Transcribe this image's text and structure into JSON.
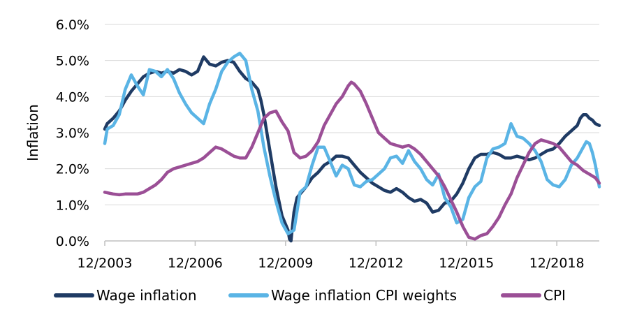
{
  "chart_data": {
    "type": "line",
    "title": "",
    "xlabel": "",
    "ylabel": "Inflation",
    "ylim": [
      0,
      6
    ],
    "y_ticks": [
      "0.0%",
      "1.0%",
      "2.0%",
      "3.0%",
      "4.0%",
      "5.0%",
      "6.0%"
    ],
    "x_ticks": [
      "12/2003",
      "12/2006",
      "12/2009",
      "12/2012",
      "12/2015",
      "12/2018"
    ],
    "x_tick_values": [
      2003.92,
      2006.92,
      2009.92,
      2012.92,
      2015.92,
      2018.92
    ],
    "xlim": [
      2003.92,
      2020.33
    ],
    "grid": "horizontal",
    "legend_position": "bottom",
    "series": [
      {
        "name": "Wage inflation",
        "color": "#1f3b64",
        "points": [
          [
            2003.92,
            3.1
          ],
          [
            2004.0,
            3.25
          ],
          [
            2004.2,
            3.4
          ],
          [
            2004.4,
            3.6
          ],
          [
            2004.6,
            3.9
          ],
          [
            2004.8,
            4.15
          ],
          [
            2005.0,
            4.35
          ],
          [
            2005.2,
            4.55
          ],
          [
            2005.4,
            4.65
          ],
          [
            2005.6,
            4.7
          ],
          [
            2005.8,
            4.65
          ],
          [
            2006.0,
            4.7
          ],
          [
            2006.2,
            4.65
          ],
          [
            2006.4,
            4.75
          ],
          [
            2006.6,
            4.7
          ],
          [
            2006.8,
            4.6
          ],
          [
            2007.0,
            4.7
          ],
          [
            2007.2,
            5.1
          ],
          [
            2007.4,
            4.9
          ],
          [
            2007.6,
            4.85
          ],
          [
            2007.8,
            4.95
          ],
          [
            2008.0,
            5.0
          ],
          [
            2008.2,
            4.95
          ],
          [
            2008.4,
            4.7
          ],
          [
            2008.6,
            4.5
          ],
          [
            2008.8,
            4.4
          ],
          [
            2009.0,
            4.2
          ],
          [
            2009.1,
            3.9
          ],
          [
            2009.2,
            3.5
          ],
          [
            2009.3,
            3.0
          ],
          [
            2009.4,
            2.5
          ],
          [
            2009.5,
            2.0
          ],
          [
            2009.6,
            1.5
          ],
          [
            2009.7,
            1.1
          ],
          [
            2009.8,
            0.7
          ],
          [
            2009.9,
            0.5
          ],
          [
            2010.0,
            0.3
          ],
          [
            2010.05,
            0.05
          ],
          [
            2010.1,
            0.0
          ],
          [
            2010.2,
            0.8
          ],
          [
            2010.3,
            1.2
          ],
          [
            2010.4,
            1.3
          ],
          [
            2010.6,
            1.5
          ],
          [
            2010.8,
            1.75
          ],
          [
            2011.0,
            1.9
          ],
          [
            2011.2,
            2.1
          ],
          [
            2011.4,
            2.2
          ],
          [
            2011.6,
            2.35
          ],
          [
            2011.8,
            2.35
          ],
          [
            2012.0,
            2.3
          ],
          [
            2012.2,
            2.1
          ],
          [
            2012.4,
            1.9
          ],
          [
            2012.6,
            1.75
          ],
          [
            2012.8,
            1.6
          ],
          [
            2013.0,
            1.5
          ],
          [
            2013.2,
            1.4
          ],
          [
            2013.4,
            1.35
          ],
          [
            2013.6,
            1.45
          ],
          [
            2013.8,
            1.35
          ],
          [
            2014.0,
            1.2
          ],
          [
            2014.2,
            1.1
          ],
          [
            2014.4,
            1.15
          ],
          [
            2014.6,
            1.05
          ],
          [
            2014.8,
            0.8
          ],
          [
            2015.0,
            0.85
          ],
          [
            2015.2,
            1.05
          ],
          [
            2015.4,
            1.1
          ],
          [
            2015.6,
            1.3
          ],
          [
            2015.8,
            1.6
          ],
          [
            2016.0,
            2.0
          ],
          [
            2016.2,
            2.3
          ],
          [
            2016.4,
            2.4
          ],
          [
            2016.6,
            2.4
          ],
          [
            2016.8,
            2.45
          ],
          [
            2017.0,
            2.4
          ],
          [
            2017.2,
            2.3
          ],
          [
            2017.4,
            2.3
          ],
          [
            2017.6,
            2.35
          ],
          [
            2017.8,
            2.3
          ],
          [
            2018.0,
            2.25
          ],
          [
            2018.2,
            2.3
          ],
          [
            2018.4,
            2.4
          ],
          [
            2018.6,
            2.5
          ],
          [
            2018.8,
            2.55
          ],
          [
            2019.0,
            2.7
          ],
          [
            2019.2,
            2.9
          ],
          [
            2019.4,
            3.05
          ],
          [
            2019.6,
            3.2
          ],
          [
            2019.7,
            3.4
          ],
          [
            2019.8,
            3.5
          ],
          [
            2019.9,
            3.5
          ],
          [
            2020.0,
            3.4
          ],
          [
            2020.1,
            3.35
          ],
          [
            2020.2,
            3.25
          ],
          [
            2020.33,
            3.2
          ]
        ]
      },
      {
        "name": "Wage inflation CPI weights",
        "color": "#5ab4e5",
        "points": [
          [
            2003.92,
            2.7
          ],
          [
            2004.0,
            3.1
          ],
          [
            2004.2,
            3.2
          ],
          [
            2004.4,
            3.5
          ],
          [
            2004.6,
            4.2
          ],
          [
            2004.8,
            4.6
          ],
          [
            2005.0,
            4.3
          ],
          [
            2005.2,
            4.05
          ],
          [
            2005.4,
            4.75
          ],
          [
            2005.6,
            4.7
          ],
          [
            2005.8,
            4.55
          ],
          [
            2006.0,
            4.75
          ],
          [
            2006.2,
            4.5
          ],
          [
            2006.4,
            4.1
          ],
          [
            2006.6,
            3.8
          ],
          [
            2006.8,
            3.55
          ],
          [
            2007.0,
            3.4
          ],
          [
            2007.2,
            3.25
          ],
          [
            2007.4,
            3.8
          ],
          [
            2007.6,
            4.2
          ],
          [
            2007.8,
            4.7
          ],
          [
            2008.0,
            4.95
          ],
          [
            2008.2,
            5.1
          ],
          [
            2008.4,
            5.2
          ],
          [
            2008.6,
            5.0
          ],
          [
            2008.8,
            4.2
          ],
          [
            2009.0,
            3.6
          ],
          [
            2009.2,
            2.6
          ],
          [
            2009.4,
            1.8
          ],
          [
            2009.6,
            1.1
          ],
          [
            2009.8,
            0.5
          ],
          [
            2010.0,
            0.2
          ],
          [
            2010.1,
            0.25
          ],
          [
            2010.2,
            0.3
          ],
          [
            2010.4,
            1.35
          ],
          [
            2010.6,
            1.5
          ],
          [
            2010.8,
            2.1
          ],
          [
            2011.0,
            2.6
          ],
          [
            2011.2,
            2.6
          ],
          [
            2011.4,
            2.2
          ],
          [
            2011.6,
            1.8
          ],
          [
            2011.8,
            2.1
          ],
          [
            2012.0,
            2.0
          ],
          [
            2012.2,
            1.55
          ],
          [
            2012.4,
            1.5
          ],
          [
            2012.6,
            1.65
          ],
          [
            2012.8,
            1.7
          ],
          [
            2013.0,
            1.85
          ],
          [
            2013.2,
            2.0
          ],
          [
            2013.4,
            2.3
          ],
          [
            2013.6,
            2.35
          ],
          [
            2013.8,
            2.15
          ],
          [
            2014.0,
            2.5
          ],
          [
            2014.2,
            2.2
          ],
          [
            2014.4,
            2.0
          ],
          [
            2014.6,
            1.7
          ],
          [
            2014.8,
            1.55
          ],
          [
            2015.0,
            1.85
          ],
          [
            2015.2,
            1.2
          ],
          [
            2015.4,
            0.95
          ],
          [
            2015.6,
            0.5
          ],
          [
            2015.8,
            0.6
          ],
          [
            2016.0,
            1.2
          ],
          [
            2016.2,
            1.5
          ],
          [
            2016.4,
            1.65
          ],
          [
            2016.6,
            2.3
          ],
          [
            2016.8,
            2.55
          ],
          [
            2017.0,
            2.6
          ],
          [
            2017.2,
            2.7
          ],
          [
            2017.4,
            3.25
          ],
          [
            2017.6,
            2.9
          ],
          [
            2017.8,
            2.85
          ],
          [
            2018.0,
            2.7
          ],
          [
            2018.2,
            2.5
          ],
          [
            2018.4,
            2.2
          ],
          [
            2018.6,
            1.7
          ],
          [
            2018.8,
            1.55
          ],
          [
            2019.0,
            1.5
          ],
          [
            2019.2,
            1.7
          ],
          [
            2019.4,
            2.1
          ],
          [
            2019.6,
            2.3
          ],
          [
            2019.8,
            2.6
          ],
          [
            2019.9,
            2.75
          ],
          [
            2020.0,
            2.7
          ],
          [
            2020.1,
            2.45
          ],
          [
            2020.2,
            2.1
          ],
          [
            2020.33,
            1.5
          ]
        ]
      },
      {
        "name": "CPI",
        "color": "#9b4f96",
        "points": [
          [
            2003.92,
            1.35
          ],
          [
            2004.2,
            1.3
          ],
          [
            2004.4,
            1.28
          ],
          [
            2004.6,
            1.3
          ],
          [
            2004.8,
            1.3
          ],
          [
            2005.0,
            1.3
          ],
          [
            2005.2,
            1.35
          ],
          [
            2005.4,
            1.45
          ],
          [
            2005.6,
            1.55
          ],
          [
            2005.8,
            1.7
          ],
          [
            2006.0,
            1.9
          ],
          [
            2006.2,
            2.0
          ],
          [
            2006.4,
            2.05
          ],
          [
            2006.6,
            2.1
          ],
          [
            2006.8,
            2.15
          ],
          [
            2007.0,
            2.2
          ],
          [
            2007.2,
            2.3
          ],
          [
            2007.4,
            2.45
          ],
          [
            2007.6,
            2.6
          ],
          [
            2007.8,
            2.55
          ],
          [
            2008.0,
            2.45
          ],
          [
            2008.2,
            2.35
          ],
          [
            2008.4,
            2.3
          ],
          [
            2008.6,
            2.3
          ],
          [
            2008.8,
            2.6
          ],
          [
            2009.0,
            3.0
          ],
          [
            2009.2,
            3.4
          ],
          [
            2009.4,
            3.55
          ],
          [
            2009.6,
            3.6
          ],
          [
            2009.8,
            3.3
          ],
          [
            2010.0,
            3.05
          ],
          [
            2010.2,
            2.45
          ],
          [
            2010.4,
            2.3
          ],
          [
            2010.6,
            2.35
          ],
          [
            2010.8,
            2.5
          ],
          [
            2011.0,
            2.75
          ],
          [
            2011.2,
            3.2
          ],
          [
            2011.4,
            3.5
          ],
          [
            2011.6,
            3.8
          ],
          [
            2011.8,
            4.0
          ],
          [
            2012.0,
            4.3
          ],
          [
            2012.1,
            4.4
          ],
          [
            2012.2,
            4.35
          ],
          [
            2012.4,
            4.15
          ],
          [
            2012.6,
            3.8
          ],
          [
            2012.8,
            3.4
          ],
          [
            2013.0,
            3.0
          ],
          [
            2013.2,
            2.85
          ],
          [
            2013.4,
            2.7
          ],
          [
            2013.6,
            2.65
          ],
          [
            2013.8,
            2.6
          ],
          [
            2014.0,
            2.65
          ],
          [
            2014.2,
            2.55
          ],
          [
            2014.4,
            2.4
          ],
          [
            2014.6,
            2.2
          ],
          [
            2014.8,
            2.0
          ],
          [
            2015.0,
            1.8
          ],
          [
            2015.2,
            1.5
          ],
          [
            2015.4,
            1.15
          ],
          [
            2015.6,
            0.8
          ],
          [
            2015.8,
            0.4
          ],
          [
            2016.0,
            0.1
          ],
          [
            2016.2,
            0.05
          ],
          [
            2016.4,
            0.15
          ],
          [
            2016.6,
            0.2
          ],
          [
            2016.8,
            0.4
          ],
          [
            2017.0,
            0.65
          ],
          [
            2017.2,
            1.0
          ],
          [
            2017.4,
            1.3
          ],
          [
            2017.6,
            1.75
          ],
          [
            2017.8,
            2.1
          ],
          [
            2018.0,
            2.45
          ],
          [
            2018.2,
            2.7
          ],
          [
            2018.4,
            2.8
          ],
          [
            2018.6,
            2.75
          ],
          [
            2018.8,
            2.7
          ],
          [
            2019.0,
            2.6
          ],
          [
            2019.2,
            2.4
          ],
          [
            2019.4,
            2.2
          ],
          [
            2019.6,
            2.1
          ],
          [
            2019.8,
            1.95
          ],
          [
            2020.0,
            1.85
          ],
          [
            2020.2,
            1.75
          ],
          [
            2020.33,
            1.6
          ]
        ]
      }
    ]
  }
}
